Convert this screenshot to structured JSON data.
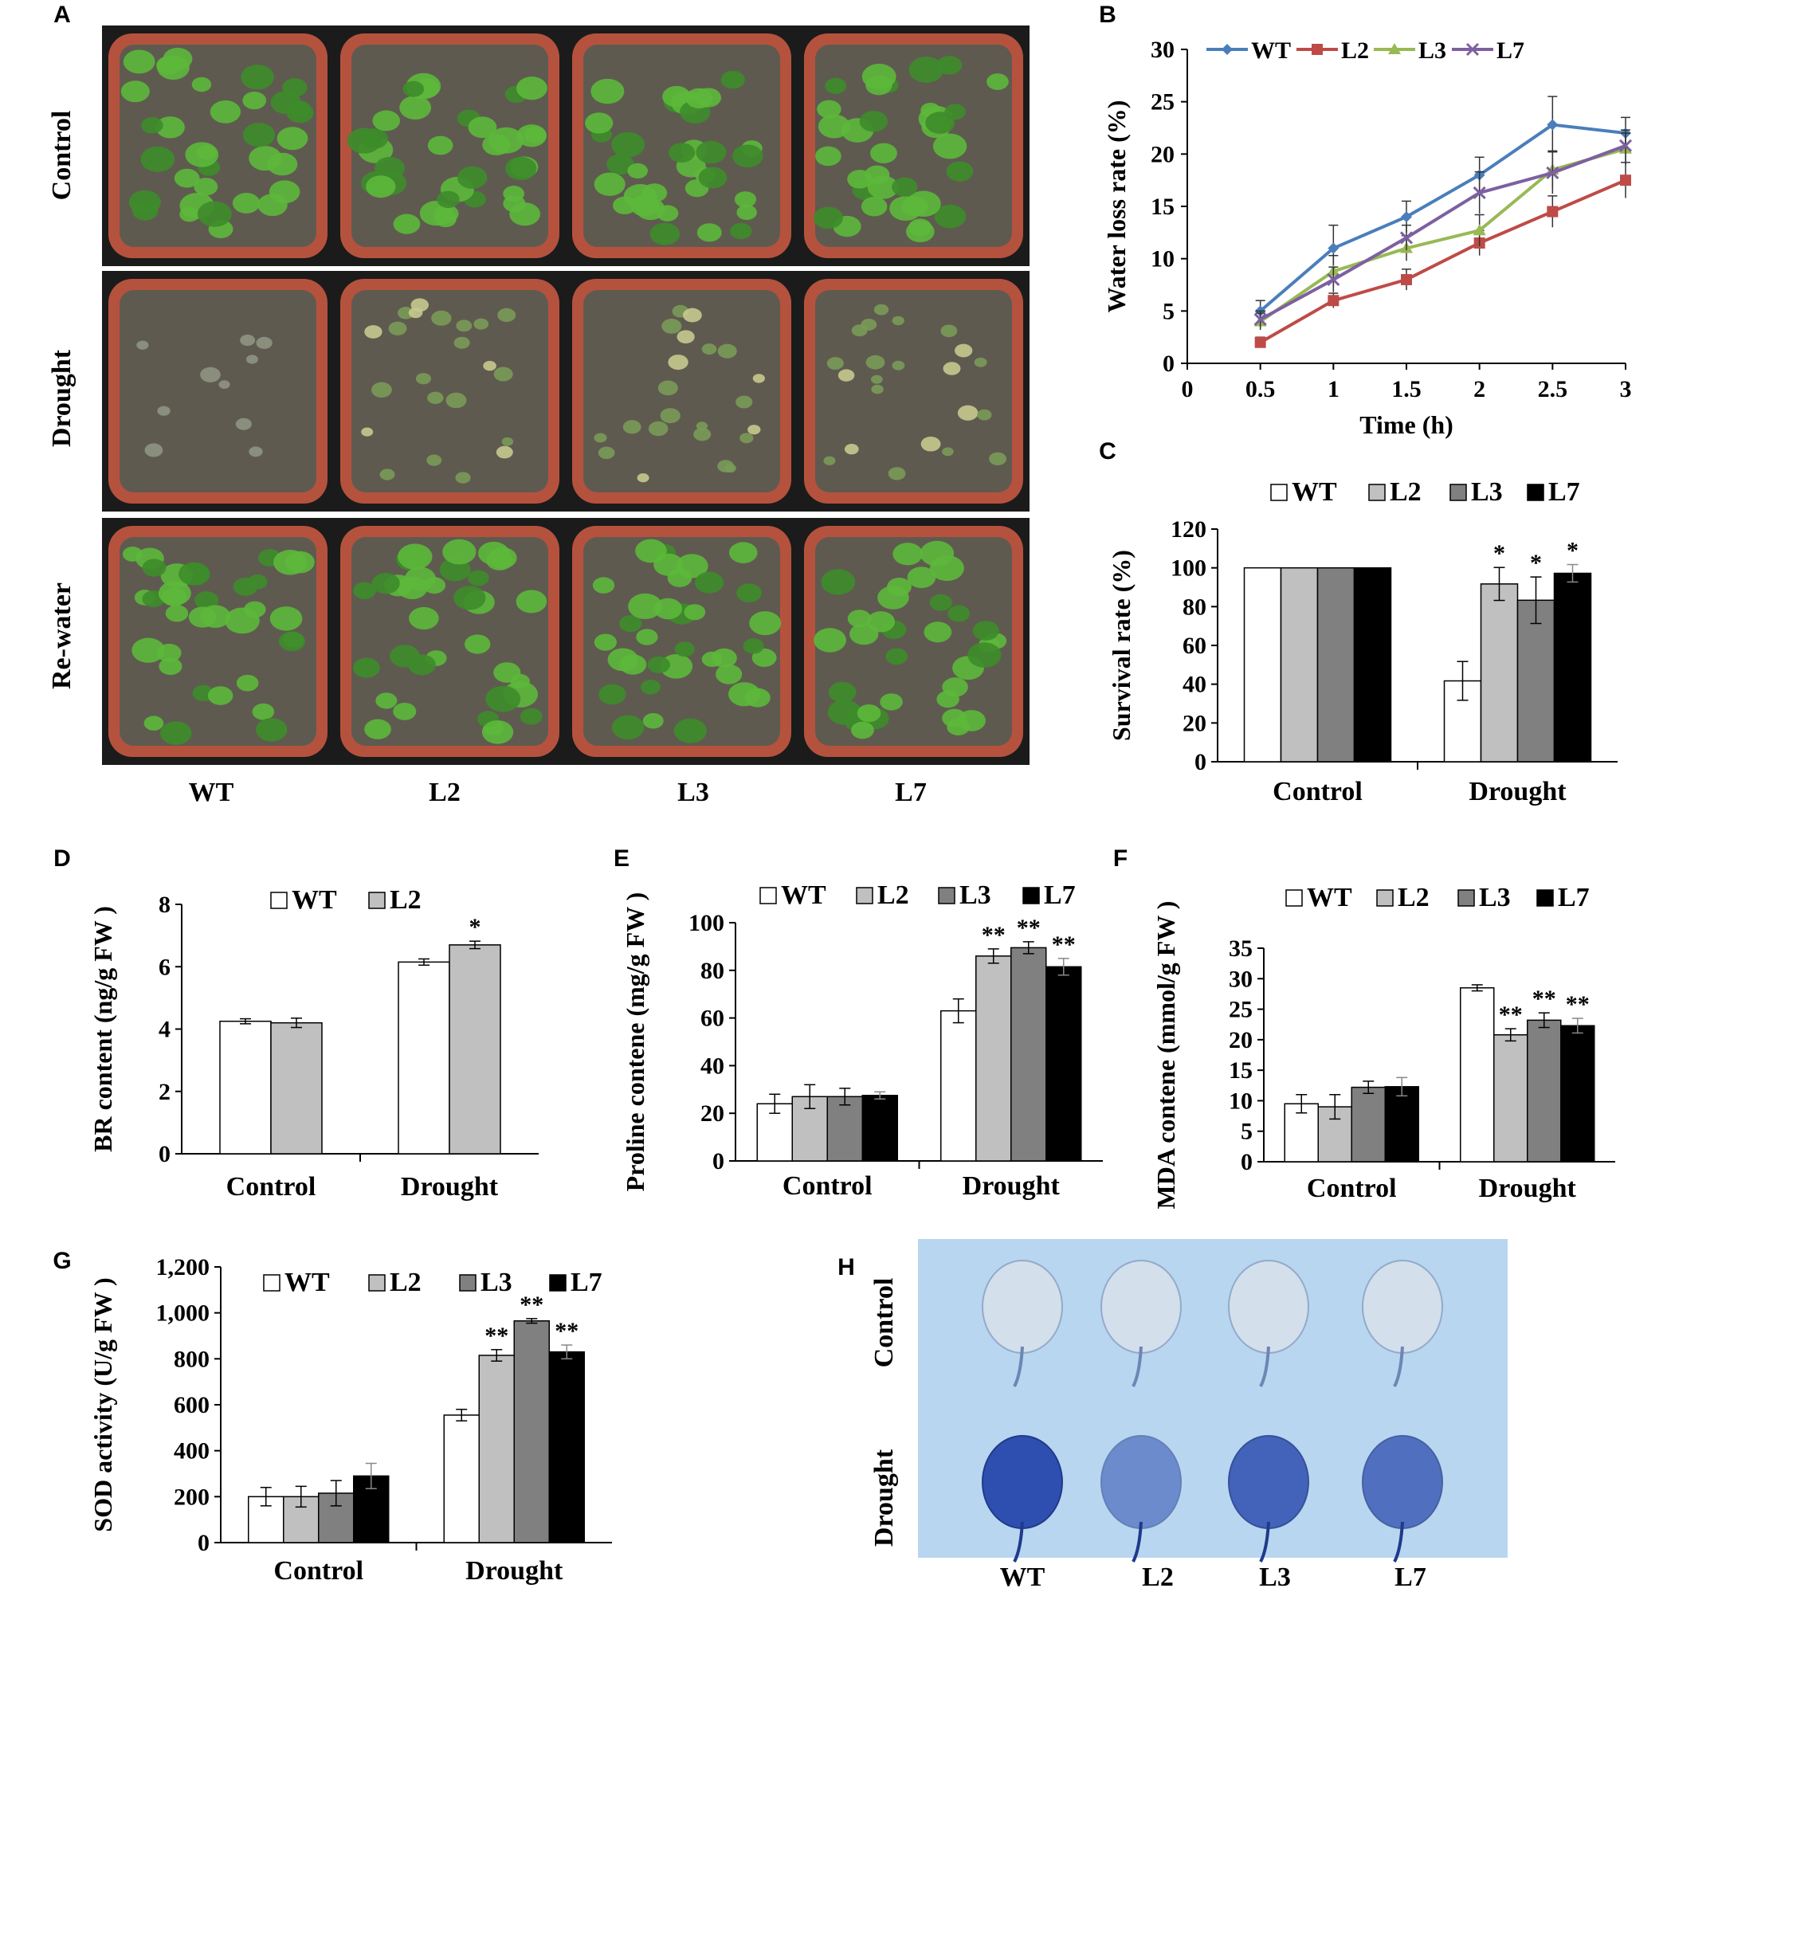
{
  "figure": {
    "panels": {
      "A": {
        "letter": "A",
        "rows": [
          "Control",
          "Drought",
          "Re-water"
        ],
        "columns": [
          "WT",
          "L2",
          "L3",
          "L7"
        ],
        "colors": {
          "leaf": "#5cb83a",
          "leaf_dark": "#3d8c2a",
          "soil": "#5f5a50",
          "pot": "#b5523e",
          "divider": "#ffffff"
        }
      },
      "H": {
        "letter": "H",
        "rows": [
          "Control",
          "Drought"
        ],
        "columns": [
          "WT",
          "L2",
          "L3",
          "L7"
        ],
        "colors": {
          "background": "#b8d6ef",
          "control_leaf": "#d7e0ea",
          "drought_leaf": "#2e4fb0"
        }
      }
    }
  },
  "chart_data": [
    {
      "panel": "B",
      "type": "line",
      "xlabel": "Time (h)",
      "ylabel": "Water loss rate (%)",
      "xlim": [
        0,
        3
      ],
      "ylim": [
        0,
        30
      ],
      "x_ticks": [
        "0",
        "0.5",
        "1",
        "1.5",
        "2",
        "2.5",
        "3"
      ],
      "y_ticks": [
        "0",
        "5",
        "10",
        "15",
        "20",
        "25",
        "30"
      ],
      "x": [
        0.5,
        1,
        1.5,
        2,
        2.5,
        3
      ],
      "legend_position": "top",
      "series": [
        {
          "name": "WT",
          "color": "#4a7ebb",
          "marker": "diamond",
          "values": [
            5,
            11,
            14,
            18,
            22.8,
            22
          ],
          "errors": [
            1,
            2.2,
            1.5,
            1.7,
            2.7,
            1.5
          ]
        },
        {
          "name": "L2",
          "color": "#be4b48",
          "marker": "square",
          "values": [
            2,
            6,
            8,
            11.5,
            14.5,
            17.5
          ],
          "errors": [
            0.5,
            0.7,
            1,
            1.2,
            1.5,
            1.7
          ]
        },
        {
          "name": "L3",
          "color": "#98b954",
          "marker": "triangle",
          "values": [
            4,
            8.8,
            11,
            12.7,
            18.5,
            20.5
          ],
          "errors": [
            0.8,
            1.5,
            1.2,
            1.5,
            1.8,
            1.5
          ]
        },
        {
          "name": "L7",
          "color": "#7d60a0",
          "marker": "x",
          "values": [
            4.2,
            8,
            12,
            16.3,
            18.2,
            20.8
          ],
          "errors": [
            0.8,
            1.2,
            1.2,
            2,
            2,
            1.5
          ]
        }
      ]
    },
    {
      "panel": "C",
      "type": "bar",
      "ylabel": "Survival rate (%)",
      "ylim": [
        0,
        120
      ],
      "y_ticks": [
        "0",
        "20",
        "40",
        "60",
        "80",
        "100",
        "120"
      ],
      "categories": [
        "Control",
        "Drought"
      ],
      "legend_position": "top",
      "series": [
        {
          "name": "WT",
          "color": "#ffffff",
          "values": [
            100,
            41.7
          ],
          "errors": [
            0,
            10
          ],
          "stars": [
            "",
            ""
          ]
        },
        {
          "name": "L2",
          "color": "#c0c0c0",
          "values": [
            100,
            91.7
          ],
          "errors": [
            0,
            8.5
          ],
          "stars": [
            "",
            "*"
          ]
        },
        {
          "name": "L3",
          "color": "#808080",
          "values": [
            100,
            83.3
          ],
          "errors": [
            0,
            12
          ],
          "stars": [
            "",
            "*"
          ]
        },
        {
          "name": "L7",
          "color": "#000000",
          "values": [
            100,
            97.2
          ],
          "errors": [
            0,
            4.5
          ],
          "stars": [
            "",
            "*"
          ]
        }
      ]
    },
    {
      "panel": "D",
      "type": "bar",
      "ylabel": "BR content (ng/g FW )",
      "ylim": [
        0,
        8
      ],
      "y_ticks": [
        "0",
        "2",
        "4",
        "6",
        "8"
      ],
      "categories": [
        "Control",
        "Drought"
      ],
      "legend_position": "top",
      "series": [
        {
          "name": "WT",
          "color": "#ffffff",
          "values": [
            4.25,
            6.15
          ],
          "errors": [
            0.08,
            0.1
          ],
          "stars": [
            "",
            ""
          ]
        },
        {
          "name": "L2",
          "color": "#c0c0c0",
          "values": [
            4.2,
            6.7
          ],
          "errors": [
            0.15,
            0.12
          ],
          "stars": [
            "",
            "*"
          ]
        }
      ]
    },
    {
      "panel": "E",
      "type": "bar",
      "ylabel": "Proline contene (mg/g FW )",
      "ylim": [
        0,
        100
      ],
      "y_ticks": [
        "0",
        "20",
        "40",
        "60",
        "80",
        "100"
      ],
      "categories": [
        "Control",
        "Drought"
      ],
      "legend_position": "top",
      "series": [
        {
          "name": "WT",
          "color": "#ffffff",
          "values": [
            24,
            63
          ],
          "errors": [
            4,
            5
          ],
          "stars": [
            "",
            ""
          ]
        },
        {
          "name": "L2",
          "color": "#c0c0c0",
          "values": [
            27,
            86
          ],
          "errors": [
            5,
            3
          ],
          "stars": [
            "",
            "**"
          ]
        },
        {
          "name": "L3",
          "color": "#808080",
          "values": [
            27,
            89.5
          ],
          "errors": [
            3.5,
            2.5
          ],
          "stars": [
            "",
            "**"
          ]
        },
        {
          "name": "L7",
          "color": "#000000",
          "values": [
            27.5,
            81.5
          ],
          "errors": [
            1.5,
            3.5
          ],
          "stars": [
            "",
            "**"
          ]
        }
      ]
    },
    {
      "panel": "F",
      "type": "bar",
      "ylabel": "MDA contene (mmol/g FW )",
      "ylim": [
        0,
        35
      ],
      "y_ticks": [
        "0",
        "5",
        "10",
        "15",
        "20",
        "25",
        "30",
        "35"
      ],
      "categories": [
        "Control",
        "Drought"
      ],
      "legend_position": "top",
      "series": [
        {
          "name": "WT",
          "color": "#ffffff",
          "values": [
            9.5,
            28.5
          ],
          "errors": [
            1.5,
            0.5
          ],
          "stars": [
            "",
            ""
          ]
        },
        {
          "name": "L2",
          "color": "#c0c0c0",
          "values": [
            9,
            20.8
          ],
          "errors": [
            2,
            1
          ],
          "stars": [
            "",
            "**"
          ]
        },
        {
          "name": "L3",
          "color": "#808080",
          "values": [
            12.2,
            23.2
          ],
          "errors": [
            1,
            1.2
          ],
          "stars": [
            "",
            "**"
          ]
        },
        {
          "name": "L7",
          "color": "#000000",
          "values": [
            12.3,
            22.3
          ],
          "errors": [
            1.5,
            1.2
          ],
          "stars": [
            "",
            "**"
          ]
        }
      ]
    },
    {
      "panel": "G",
      "type": "bar",
      "ylabel": "SOD activity (U/g FW )",
      "ylim": [
        0,
        1200
      ],
      "y_ticks": [
        "0",
        "200",
        "400",
        "600",
        "800",
        "1,000",
        "1,200"
      ],
      "categories": [
        "Control",
        "Drought"
      ],
      "legend_position": "top",
      "series": [
        {
          "name": "WT",
          "color": "#ffffff",
          "values": [
            200,
            555
          ],
          "errors": [
            40,
            25
          ],
          "stars": [
            "",
            ""
          ]
        },
        {
          "name": "L2",
          "color": "#c0c0c0",
          "values": [
            200,
            815
          ],
          "errors": [
            45,
            25
          ],
          "stars": [
            "",
            "**"
          ]
        },
        {
          "name": "L3",
          "color": "#808080",
          "values": [
            215,
            965
          ],
          "errors": [
            55,
            10
          ],
          "stars": [
            "",
            "**"
          ]
        },
        {
          "name": "L7",
          "color": "#000000",
          "values": [
            290,
            830
          ],
          "errors": [
            55,
            30
          ],
          "stars": [
            "",
            "**"
          ]
        }
      ]
    }
  ]
}
